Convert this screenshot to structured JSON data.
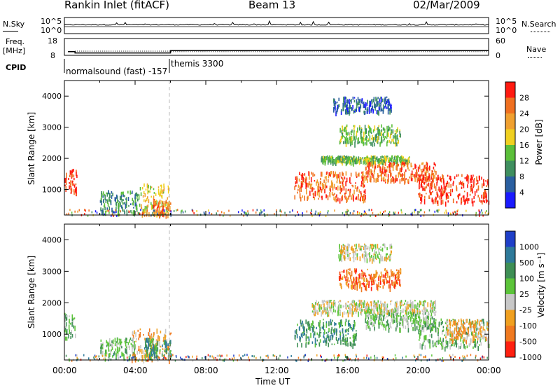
{
  "header": {
    "station": "Rankin Inlet (fitACF)",
    "beam": "Beam 13",
    "date": "02/Mar/2009"
  },
  "noise_panel": {
    "left_label": "N.Sky",
    "left_ticks": [
      "10^5",
      "10^0"
    ],
    "right_label": "N.Search",
    "right_ticks": [
      "10^5",
      "10^0"
    ]
  },
  "freq_panel": {
    "left_label_1": "Freq.",
    "left_label_2": "[MHz]",
    "left_ticks": [
      "18",
      "8"
    ],
    "right_label": "Nave",
    "right_ticks": [
      "60",
      "0"
    ]
  },
  "cpid": {
    "label": "CPID",
    "mode1": "normalsound (fast) -157",
    "mode2": "themis 3300"
  },
  "x_axis": {
    "label": "Time UT",
    "ticks": [
      "00:00",
      "04:00",
      "08:00",
      "12:00",
      "16:00",
      "20:00",
      "00:00"
    ]
  },
  "power_panel": {
    "ylabel": "Slant Range [km]",
    "yticks": [
      "1000",
      "2000",
      "3000",
      "4000"
    ],
    "colorbar_label": "Power [dB]",
    "colorbar_ticks": [
      "4",
      "8",
      "12",
      "16",
      "20",
      "24",
      "28"
    ],
    "colors": [
      "#1a1aff",
      "#2a5fa0",
      "#3f8f5f",
      "#5bbf3a",
      "#f0d020",
      "#f0a030",
      "#f07020",
      "#ff1a10"
    ]
  },
  "velocity_panel": {
    "ylabel": "Slant Range [km]",
    "yticks": [
      "1000",
      "2000",
      "3000",
      "4000"
    ],
    "colorbar_label": "Velocity [m s⁻¹]",
    "colorbar_ticks": [
      "1000",
      "500",
      "100",
      "25",
      "-25",
      "-100",
      "-500",
      "-1000"
    ],
    "colors": [
      "#1f3fc8",
      "#2e7a9a",
      "#3e8f55",
      "#5cc43a",
      "#c8c8c8",
      "#f0a020",
      "#f07a20",
      "#ff2010"
    ]
  },
  "chart_data": [
    {
      "type": "line",
      "title": "N.Sky / N.Search",
      "x_range_hours": [
        0,
        24
      ],
      "y_scale": "log",
      "ylim": [
        1,
        100000
      ]
    },
    {
      "type": "line",
      "title": "Freq. [MHz] / Nave",
      "x_range_hours": [
        0,
        24
      ],
      "series": [
        {
          "name": "Freq.",
          "points": [
            [
              0.2,
              10.2
            ],
            [
              0.6,
              10.2
            ],
            [
              0.6,
              9.4
            ],
            [
              6.0,
              9.4
            ],
            [
              6.0,
              10.8
            ],
            [
              24,
              10.8
            ]
          ]
        },
        {
          "name": "Nave",
          "points": [
            [
              0.6,
              15
            ],
            [
              6.0,
              15
            ],
            [
              6.0,
              13
            ],
            [
              24,
              13
            ]
          ]
        }
      ],
      "ylim": [
        8,
        18
      ]
    },
    {
      "type": "heatmap",
      "title": "Power [dB]",
      "x_range_hours": [
        0,
        24
      ],
      "ylim": [
        180,
        4500
      ],
      "regions": [
        {
          "t0": 0.0,
          "t1": 0.7,
          "r0": 900,
          "r1": 1700,
          "level": 7
        },
        {
          "t0": 2.0,
          "t1": 4.2,
          "r0": 300,
          "r1": 1000,
          "level": 2
        },
        {
          "t0": 4.2,
          "t1": 5.9,
          "r0": 250,
          "r1": 1200,
          "level": 4
        },
        {
          "t0": 5.0,
          "t1": 6.0,
          "r0": 200,
          "r1": 700,
          "level": 6
        },
        {
          "t0": 13.0,
          "t1": 17.0,
          "r0": 700,
          "r1": 1600,
          "level": 6
        },
        {
          "t0": 14.5,
          "t1": 19.5,
          "r0": 1900,
          "r1": 2100,
          "level": 3
        },
        {
          "t0": 17.0,
          "t1": 21.0,
          "r0": 1300,
          "r1": 1900,
          "level": 6
        },
        {
          "t0": 20.0,
          "t1": 24.0,
          "r0": 600,
          "r1": 1500,
          "level": 7
        },
        {
          "t0": 15.5,
          "t1": 19.0,
          "r0": 2500,
          "r1": 3100,
          "level": 3
        },
        {
          "t0": 15.2,
          "t1": 18.5,
          "r0": 3500,
          "r1": 4000,
          "level": 1
        }
      ]
    },
    {
      "type": "heatmap",
      "title": "Velocity [m s-1]",
      "x_range_hours": [
        0,
        24
      ],
      "ylim": [
        180,
        4500
      ],
      "regions": [
        {
          "t0": 0.0,
          "t1": 0.6,
          "r0": 900,
          "r1": 1700,
          "level": 3
        },
        {
          "t0": 2.0,
          "t1": 4.0,
          "r0": 300,
          "r1": 900,
          "level": 3
        },
        {
          "t0": 3.8,
          "t1": 6.0,
          "r0": 200,
          "r1": 1200,
          "level": 5
        },
        {
          "t0": 4.5,
          "t1": 6.0,
          "r0": 300,
          "r1": 900,
          "level": 2
        },
        {
          "t0": 13.0,
          "t1": 16.5,
          "r0": 700,
          "r1": 1500,
          "level": 2
        },
        {
          "t0": 14.0,
          "t1": 21.0,
          "r0": 1700,
          "r1": 2100,
          "level": 4
        },
        {
          "t0": 17.0,
          "t1": 21.0,
          "r0": 1200,
          "r1": 1700,
          "level": 3
        },
        {
          "t0": 20.0,
          "t1": 24.0,
          "r0": 600,
          "r1": 1500,
          "level": 3
        },
        {
          "t0": 21.5,
          "t1": 24.0,
          "r0": 800,
          "r1": 1500,
          "level": 5
        },
        {
          "t0": 15.5,
          "t1": 19.0,
          "r0": 2500,
          "r1": 3100,
          "level": 6
        },
        {
          "t0": 15.5,
          "t1": 18.5,
          "r0": 3400,
          "r1": 3900,
          "level": 4
        }
      ]
    }
  ]
}
